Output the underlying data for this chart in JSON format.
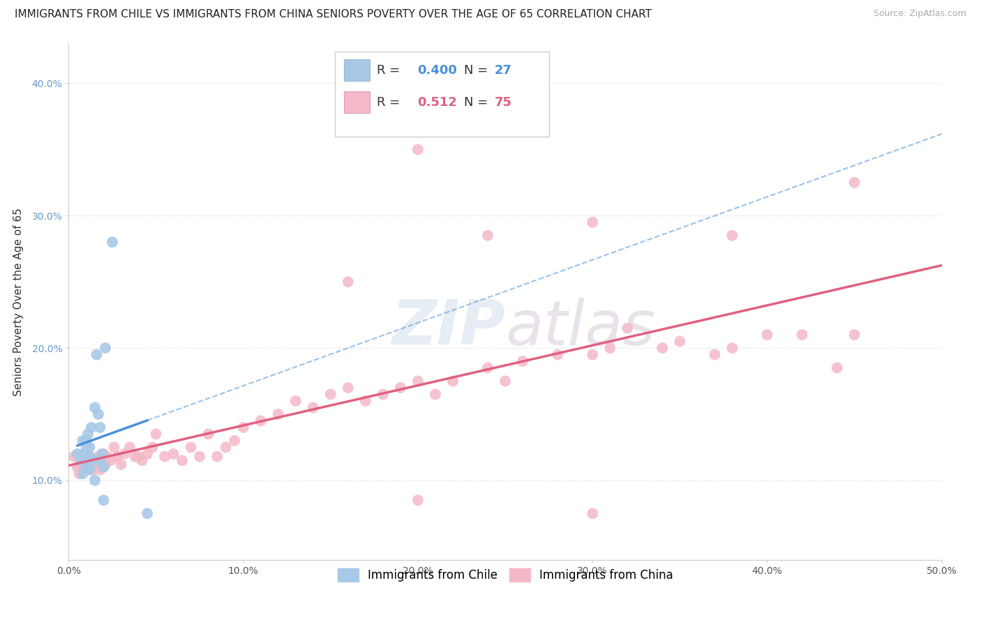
{
  "title": "IMMIGRANTS FROM CHILE VS IMMIGRANTS FROM CHINA SENIORS POVERTY OVER THE AGE OF 65 CORRELATION CHART",
  "source": "Source: ZipAtlas.com",
  "ylabel": "Seniors Poverty Over the Age of 65",
  "xlim": [
    0.0,
    0.5
  ],
  "ylim": [
    0.04,
    0.43
  ],
  "xticks": [
    0.0,
    0.1,
    0.2,
    0.3,
    0.4,
    0.5
  ],
  "xtick_labels": [
    "0.0%",
    "10.0%",
    "20.0%",
    "30.0%",
    "40.0%",
    "50.0%"
  ],
  "yticks": [
    0.1,
    0.2,
    0.3,
    0.4
  ],
  "ytick_labels": [
    "10.0%",
    "20.0%",
    "30.0%",
    "40.0%"
  ],
  "legend1_color": "#a8c8e8",
  "legend2_color": "#f4b8c8",
  "line1_color": "#4a90d9",
  "line2_color": "#e06080",
  "watermark": "ZIPatlas",
  "chile_x": [
    0.005,
    0.007,
    0.008,
    0.008,
    0.009,
    0.01,
    0.01,
    0.01,
    0.01,
    0.011,
    0.012,
    0.012,
    0.012,
    0.013,
    0.014,
    0.015,
    0.015,
    0.016,
    0.017,
    0.018,
    0.018,
    0.019,
    0.02,
    0.02,
    0.021,
    0.025,
    0.045
  ],
  "chile_y": [
    0.12,
    0.115,
    0.105,
    0.13,
    0.12,
    0.125,
    0.115,
    0.11,
    0.13,
    0.135,
    0.118,
    0.108,
    0.125,
    0.14,
    0.115,
    0.155,
    0.1,
    0.195,
    0.15,
    0.14,
    0.115,
    0.12,
    0.085,
    0.11,
    0.2,
    0.28,
    0.075
  ],
  "china_x": [
    0.003,
    0.005,
    0.006,
    0.007,
    0.008,
    0.009,
    0.01,
    0.011,
    0.012,
    0.013,
    0.014,
    0.015,
    0.016,
    0.017,
    0.018,
    0.02,
    0.021,
    0.022,
    0.024,
    0.026,
    0.028,
    0.03,
    0.032,
    0.035,
    0.038,
    0.04,
    0.042,
    0.045,
    0.048,
    0.05,
    0.055,
    0.06,
    0.065,
    0.07,
    0.075,
    0.08,
    0.085,
    0.09,
    0.095,
    0.1,
    0.11,
    0.12,
    0.13,
    0.14,
    0.15,
    0.16,
    0.17,
    0.18,
    0.19,
    0.2,
    0.21,
    0.22,
    0.24,
    0.25,
    0.26,
    0.28,
    0.3,
    0.31,
    0.32,
    0.34,
    0.35,
    0.37,
    0.38,
    0.4,
    0.42,
    0.44,
    0.45,
    0.2,
    0.16,
    0.24,
    0.3,
    0.38,
    0.45,
    0.2,
    0.3
  ],
  "china_y": [
    0.118,
    0.11,
    0.105,
    0.112,
    0.108,
    0.115,
    0.115,
    0.11,
    0.118,
    0.112,
    0.108,
    0.115,
    0.112,
    0.118,
    0.108,
    0.12,
    0.112,
    0.118,
    0.115,
    0.125,
    0.118,
    0.112,
    0.12,
    0.125,
    0.118,
    0.118,
    0.115,
    0.12,
    0.125,
    0.135,
    0.118,
    0.12,
    0.115,
    0.125,
    0.118,
    0.135,
    0.118,
    0.125,
    0.13,
    0.14,
    0.145,
    0.15,
    0.16,
    0.155,
    0.165,
    0.17,
    0.16,
    0.165,
    0.17,
    0.175,
    0.165,
    0.175,
    0.185,
    0.175,
    0.19,
    0.195,
    0.195,
    0.2,
    0.215,
    0.2,
    0.205,
    0.195,
    0.2,
    0.21,
    0.21,
    0.185,
    0.21,
    0.35,
    0.25,
    0.285,
    0.295,
    0.285,
    0.325,
    0.085,
    0.075
  ],
  "background_color": "#ffffff",
  "grid_color": "#d8d8ee",
  "title_fontsize": 11,
  "axis_fontsize": 11,
  "tick_fontsize": 10,
  "ytick_color": "#6699cc",
  "xtick_color": "#555555"
}
